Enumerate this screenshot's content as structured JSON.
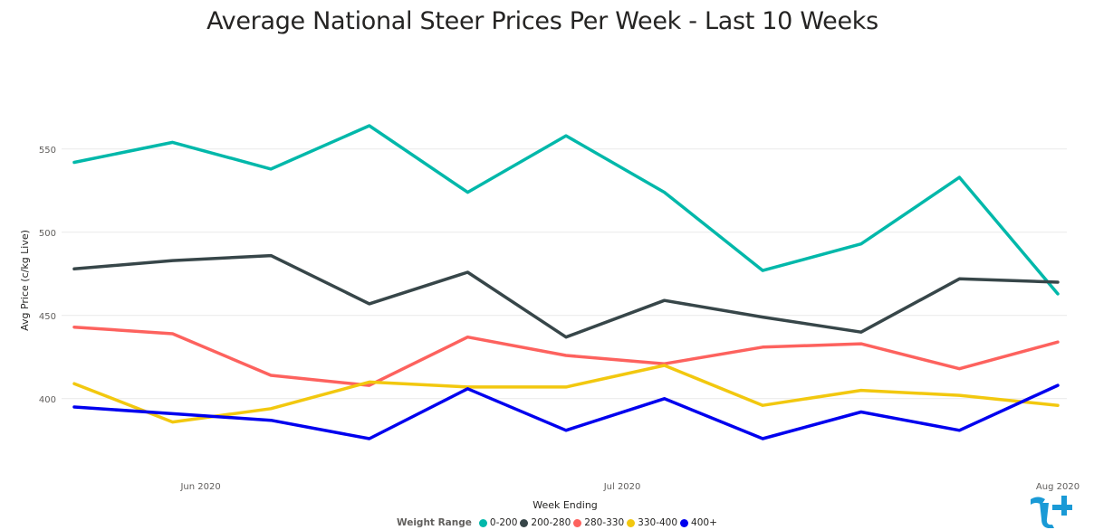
{
  "chart_data": {
    "type": "line",
    "title": "Average National Steer Prices Per Week - Last 10 Weeks",
    "xlabel": "Week Ending",
    "ylabel": "Avg Price (c/kg Live)",
    "x_dates": [
      "2020-05-23",
      "2020-05-30",
      "2020-06-06",
      "2020-06-13",
      "2020-06-20",
      "2020-06-27",
      "2020-07-04",
      "2020-07-11",
      "2020-07-18",
      "2020-07-25",
      "2020-08-01"
    ],
    "x_ticks": [
      {
        "date": "2020-06-01",
        "label": "Jun 2020"
      },
      {
        "date": "2020-07-01",
        "label": "Jul 2020"
      },
      {
        "date": "2020-08-01",
        "label": "Aug 2020"
      }
    ],
    "ylim": [
      370,
      570
    ],
    "yticks": [
      400,
      450,
      500,
      550
    ],
    "grid": true,
    "legend": {
      "title": "Weight Range",
      "placement": "bottom-center"
    },
    "series": [
      {
        "name": "0-200",
        "color": "#01B8AA",
        "values": [
          542,
          554,
          538,
          564,
          524,
          558,
          524,
          477,
          493,
          533,
          463
        ]
      },
      {
        "name": "200-280",
        "color": "#374649",
        "values": [
          478,
          483,
          486,
          457,
          476,
          437,
          459,
          449,
          440,
          472,
          470
        ]
      },
      {
        "name": "280-330",
        "color": "#FD625E",
        "values": [
          443,
          439,
          414,
          408,
          437,
          426,
          421,
          431,
          433,
          418,
          434
        ]
      },
      {
        "name": "330-400",
        "color": "#F2C80F",
        "values": [
          409,
          386,
          394,
          410,
          407,
          407,
          420,
          396,
          405,
          402,
          396
        ]
      },
      {
        "name": "400+",
        "color": "#0000EE",
        "values": [
          395,
          391,
          387,
          376,
          406,
          381,
          400,
          376,
          392,
          381,
          408
        ]
      }
    ]
  }
}
